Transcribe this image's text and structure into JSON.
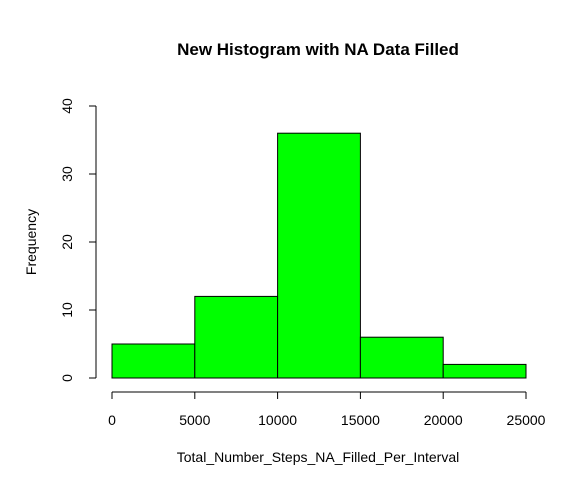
{
  "chart_data": {
    "type": "bar",
    "title": "New Histogram with NA Data Filled",
    "xlabel": "Total_Number_Steps_NA_Filled_Per_Interval",
    "ylabel": "Frequency",
    "bins": [
      {
        "from": 0,
        "to": 5000,
        "count": 5
      },
      {
        "from": 5000,
        "to": 10000,
        "count": 12
      },
      {
        "from": 10000,
        "to": 15000,
        "count": 36
      },
      {
        "from": 15000,
        "to": 20000,
        "count": 6
      },
      {
        "from": 20000,
        "to": 25000,
        "count": 2
      }
    ],
    "xlim": [
      0,
      25000
    ],
    "ylim": [
      0,
      40
    ],
    "x_ticks": [
      0,
      5000,
      10000,
      15000,
      20000,
      25000
    ],
    "y_ticks": [
      0,
      10,
      20,
      30,
      40
    ],
    "bar_color": "#00FF00",
    "border_color": "#000000",
    "grid": false,
    "legend": "none"
  }
}
